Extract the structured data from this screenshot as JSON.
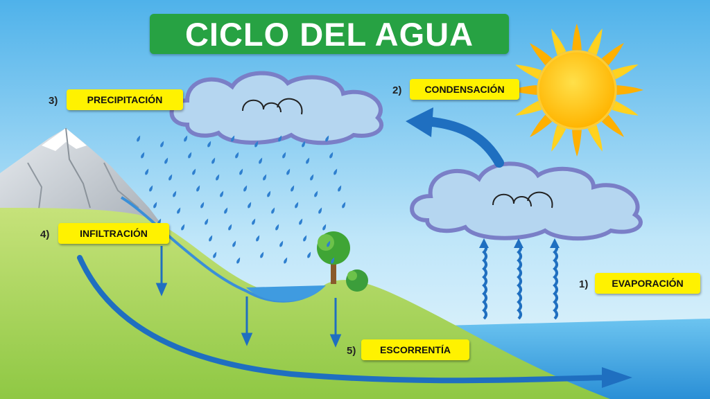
{
  "title": "CICLO DEL AGUA",
  "steps": [
    {
      "num": "1)",
      "label": "EVAPORACIÓN"
    },
    {
      "num": "2)",
      "label": "CONDENSACIÓN"
    },
    {
      "num": "3)",
      "label": "PRECIPITACIÓN"
    },
    {
      "num": "4)",
      "label": "INFILTRACIÓN"
    },
    {
      "num": "5)",
      "label": "ESCORRENTÍA"
    }
  ],
  "colors": {
    "title_bg": "#27a243",
    "label_bg": "#fff200",
    "arrow": "#1f6fc0",
    "sky_top": "#54b6ec",
    "grass": "#a9d45a",
    "sea": "#3aa7e6",
    "sun": "#ffc20e"
  },
  "icons": [
    "sun-icon",
    "cloud-icon",
    "mountain-icon",
    "tree-icon",
    "rain-drop-icon",
    "arrow-icon"
  ]
}
